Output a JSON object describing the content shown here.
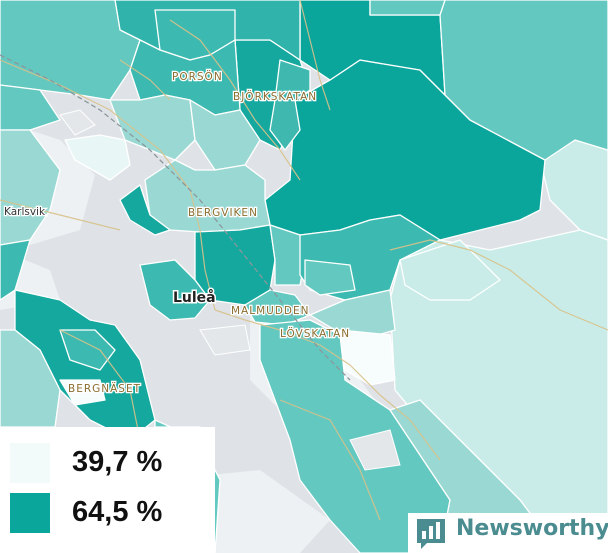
{
  "colors": {
    "land": "#dfe3e7",
    "water_light": "#eef1f3",
    "low": "#f2fbfa",
    "high": "#0aa59b",
    "road": "#d8c28a",
    "boundary": "#ffffff"
  },
  "places": {
    "porson": "PORSÖN",
    "bjorkskatan": "BJÖRKSKATAN",
    "karlsvik": "Karlsvik",
    "bergviken": "BERGVIKEN",
    "lulea": "Luleå",
    "malmudden": "MALMUDDEN",
    "lovskatan": "LÖVSKATAN",
    "bergnaset": "BERGNÄSET"
  },
  "legend": {
    "items": [
      {
        "value": "39,7 %",
        "color": "#f2fbfa"
      },
      {
        "value": "64,5 %",
        "color": "#0aa59b"
      }
    ]
  },
  "brand": {
    "name": "Newsworthy"
  }
}
